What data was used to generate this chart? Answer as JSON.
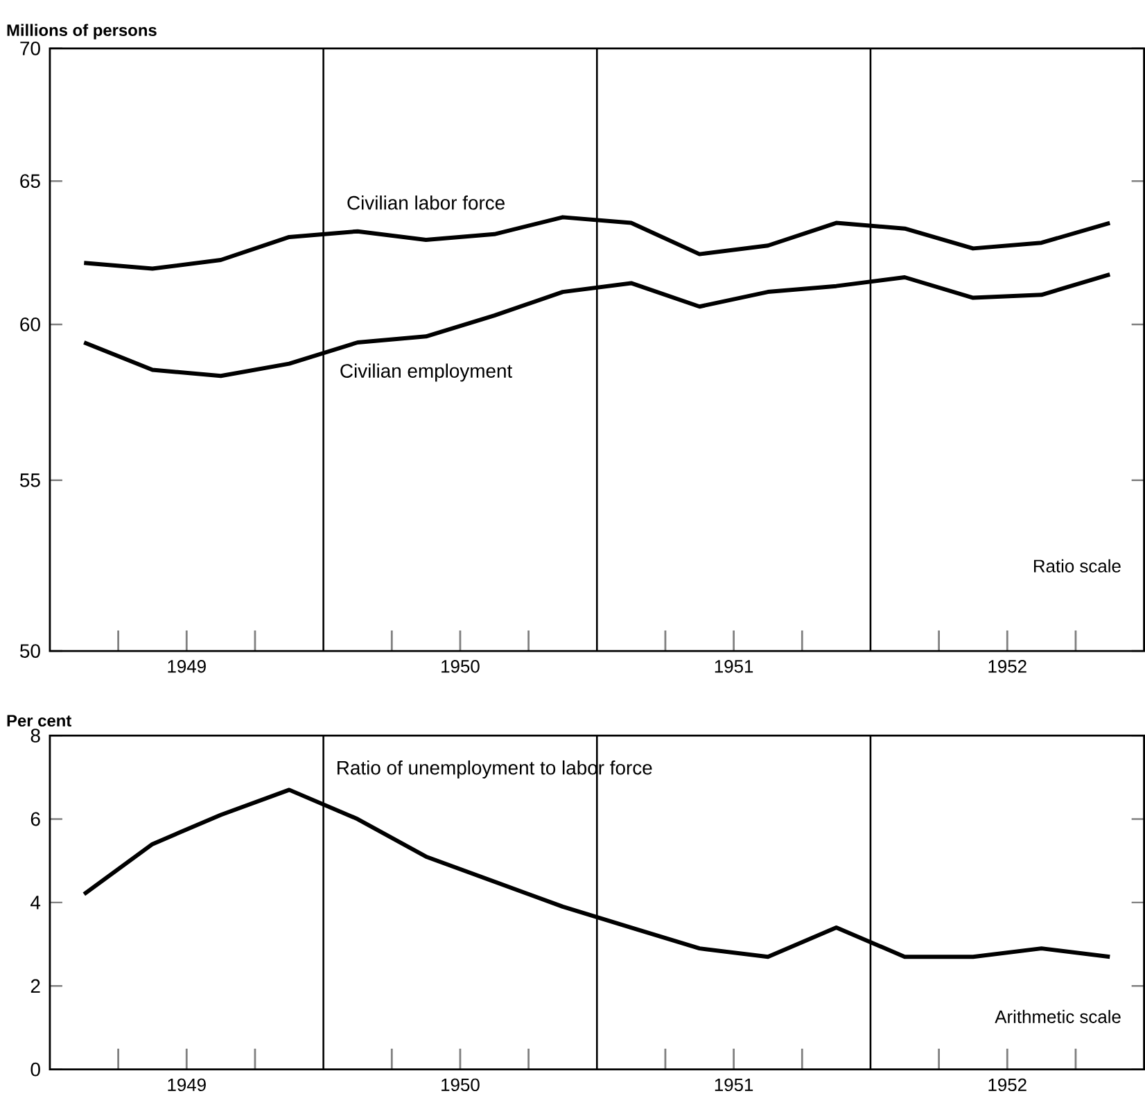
{
  "chart_data": [
    {
      "type": "line",
      "ylabel": "Millions of persons",
      "log": "y",
      "x": [
        1949.125,
        1949.375,
        1949.625,
        1949.875,
        1950.125,
        1950.375,
        1950.625,
        1950.875,
        1951.125,
        1951.375,
        1951.625,
        1951.875,
        1952.125,
        1952.375,
        1952.625,
        1952.875
      ],
      "series": [
        {
          "name": "Civilian labor force",
          "color": "#000000",
          "values": [
            62.1,
            61.9,
            62.2,
            63.0,
            63.2,
            62.9,
            63.1,
            63.7,
            63.5,
            62.4,
            62.7,
            63.5,
            63.3,
            62.6,
            62.8,
            63.5
          ]
        },
        {
          "name": "Civilian employment",
          "color": "#000000",
          "values": [
            59.4,
            58.5,
            58.3,
            58.7,
            59.4,
            59.6,
            60.3,
            61.1,
            61.4,
            60.6,
            61.1,
            61.3,
            61.6,
            60.9,
            61.0,
            61.7
          ]
        }
      ],
      "xlim": [
        1949,
        1953
      ],
      "xticks": [
        {
          "value": 1949.25,
          "label": null
        },
        {
          "value": 1949.5,
          "label": "1949"
        },
        {
          "value": 1949.75,
          "label": null
        },
        {
          "value": 1950.25,
          "label": null
        },
        {
          "value": 1950.5,
          "label": "1950"
        },
        {
          "value": 1950.75,
          "label": null
        },
        {
          "value": 1951.25,
          "label": null
        },
        {
          "value": 1951.5,
          "label": "1951"
        },
        {
          "value": 1951.75,
          "label": null
        },
        {
          "value": 1952.25,
          "label": null
        },
        {
          "value": 1952.5,
          "label": "1952"
        },
        {
          "value": 1952.75,
          "label": null
        }
      ],
      "ylim": [
        50,
        70
      ],
      "yticks": [
        50,
        55,
        60,
        65,
        70
      ],
      "ref_lines": [
        {
          "axis": "x",
          "value": 1950,
          "color": "#000000"
        },
        {
          "axis": "x",
          "value": 1951,
          "color": "#000000"
        },
        {
          "axis": "x",
          "value": 1952,
          "color": "#000000"
        }
      ],
      "annotations": [
        "Ratio scale"
      ]
    },
    {
      "type": "line",
      "ylabel": "Per cent",
      "x": [
        1949.125,
        1949.375,
        1949.625,
        1949.875,
        1950.125,
        1950.375,
        1950.625,
        1950.875,
        1951.125,
        1951.375,
        1951.625,
        1951.875,
        1952.125,
        1952.375,
        1952.625,
        1952.875
      ],
      "series": [
        {
          "name": "Ratio of unemployment to labor force",
          "color": "#000000",
          "values": [
            4.2,
            5.4,
            6.1,
            6.7,
            6.0,
            5.1,
            4.5,
            3.9,
            3.4,
            2.9,
            2.7,
            3.4,
            2.7,
            2.7,
            2.9,
            2.7
          ]
        }
      ],
      "xlim": [
        1949,
        1953
      ],
      "xticks": [
        {
          "value": 1949.25,
          "label": null
        },
        {
          "value": 1949.5,
          "label": "1949"
        },
        {
          "value": 1949.75,
          "label": null
        },
        {
          "value": 1950.25,
          "label": null
        },
        {
          "value": 1950.5,
          "label": "1950"
        },
        {
          "value": 1950.75,
          "label": null
        },
        {
          "value": 1951.25,
          "label": null
        },
        {
          "value": 1951.5,
          "label": "1951"
        },
        {
          "value": 1951.75,
          "label": null
        },
        {
          "value": 1952.25,
          "label": null
        },
        {
          "value": 1952.5,
          "label": "1952"
        },
        {
          "value": 1952.75,
          "label": null
        }
      ],
      "ylim": [
        0,
        8
      ],
      "yticks": [
        0,
        2,
        4,
        6,
        8
      ],
      "ref_lines": [
        {
          "axis": "x",
          "value": 1950,
          "color": "#000000"
        },
        {
          "axis": "x",
          "value": 1951,
          "color": "#000000"
        },
        {
          "axis": "x",
          "value": 1952,
          "color": "#000000"
        }
      ],
      "annotations": [
        "Arithmetic scale"
      ]
    }
  ]
}
